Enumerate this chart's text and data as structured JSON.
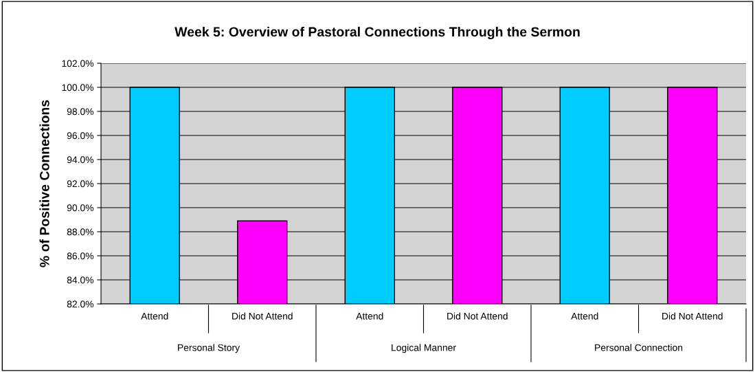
{
  "chart_data": {
    "type": "bar",
    "title": "Week 5: Overview of Pastoral Connections Through the Sermon",
    "ylabel": "% of Positive Connections",
    "categories": [
      "Attend",
      "Did Not Attend",
      "Attend",
      "Did Not Attend",
      "Attend",
      "Did Not Attend"
    ],
    "values": [
      100.0,
      88.9,
      100.0,
      100.0,
      100.0,
      100.0
    ],
    "colors": [
      "#00ccff",
      "#ff00ff",
      "#00ccff",
      "#ff00ff",
      "#00ccff",
      "#ff00ff"
    ],
    "annotations": [
      "Personal Story",
      "Logical Manner",
      "Personal Connection"
    ],
    "ylim": [
      82,
      102
    ],
    "yticks": [
      {
        "value": 82,
        "label": "82.0%"
      },
      {
        "value": 84,
        "label": "84.0%"
      },
      {
        "value": 86,
        "label": "86.0%"
      },
      {
        "value": 88,
        "label": "88.0%"
      },
      {
        "value": 90,
        "label": "90.0%"
      },
      {
        "value": 92,
        "label": "92.0%"
      },
      {
        "value": 94,
        "label": "94.0%"
      },
      {
        "value": 96,
        "label": "96.0%"
      },
      {
        "value": 98,
        "label": "98.0%"
      },
      {
        "value": 100,
        "label": "100.0%"
      },
      {
        "value": 102,
        "label": "102.0%"
      }
    ],
    "grid": "y",
    "legend": false
  }
}
